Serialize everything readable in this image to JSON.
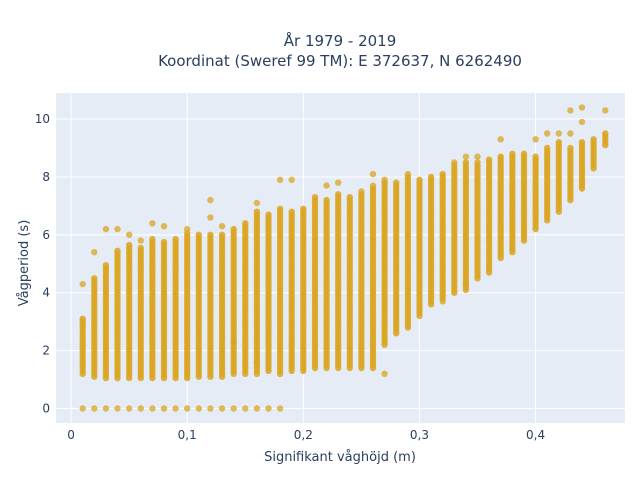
{
  "chart_data": {
    "type": "scatter",
    "title_line1": "År 1979 - 2019",
    "title_line2": "Koordinat (Sweref 99 TM): E 372637, N 6262490",
    "xlabel": "Signifikant våghöjd (m)",
    "ylabel": "Vågperiod (s)",
    "xlim": [
      -0.013,
      0.477
    ],
    "ylim": [
      -0.5,
      10.9
    ],
    "xticks": [
      0,
      0.1,
      0.2,
      0.3,
      0.4
    ],
    "xtick_labels": [
      "0",
      "0,1",
      "0,2",
      "0,3",
      "0,4"
    ],
    "yticks": [
      0,
      2,
      4,
      6,
      8,
      10
    ],
    "ytick_labels": [
      "0",
      "2",
      "4",
      "6",
      "8",
      "10"
    ],
    "grid": true,
    "marker_color": "#DAA520",
    "plot_bgcolor": "#E5ECF6",
    "columns": [
      {
        "x": 0.01,
        "y_min": 1.2,
        "y_max": 3.1,
        "extra": [
          0,
          4.3
        ]
      },
      {
        "x": 0.02,
        "y_min": 1.1,
        "y_max": 4.5,
        "extra": [
          0,
          5.4
        ]
      },
      {
        "x": 0.03,
        "y_min": 1.05,
        "y_max": 5.0,
        "extra": [
          0,
          6.2
        ]
      },
      {
        "x": 0.04,
        "y_min": 1.05,
        "y_max": 5.5,
        "extra": [
          0,
          6.2
        ]
      },
      {
        "x": 0.05,
        "y_min": 1.05,
        "y_max": 5.7,
        "extra": [
          0,
          6.0
        ]
      },
      {
        "x": 0.06,
        "y_min": 1.05,
        "y_max": 5.6,
        "extra": [
          0,
          5.8
        ]
      },
      {
        "x": 0.07,
        "y_min": 1.05,
        "y_max": 5.9,
        "extra": [
          0,
          6.4
        ]
      },
      {
        "x": 0.08,
        "y_min": 1.05,
        "y_max": 5.8,
        "extra": [
          0,
          6.3
        ]
      },
      {
        "x": 0.09,
        "y_min": 1.05,
        "y_max": 5.9,
        "extra": [
          0
        ]
      },
      {
        "x": 0.1,
        "y_min": 1.05,
        "y_max": 6.1,
        "extra": [
          0,
          6.2
        ]
      },
      {
        "x": 0.11,
        "y_min": 1.1,
        "y_max": 6.0,
        "extra": [
          0
        ]
      },
      {
        "x": 0.12,
        "y_min": 1.1,
        "y_max": 6.0,
        "extra": [
          0,
          7.2,
          6.6
        ]
      },
      {
        "x": 0.13,
        "y_min": 1.1,
        "y_max": 6.0,
        "extra": [
          0,
          6.3
        ]
      },
      {
        "x": 0.14,
        "y_min": 1.2,
        "y_max": 6.2,
        "extra": [
          0,
          2.3
        ]
      },
      {
        "x": 0.15,
        "y_min": 1.2,
        "y_max": 6.4,
        "extra": [
          0
        ]
      },
      {
        "x": 0.16,
        "y_min": 1.2,
        "y_max": 6.8,
        "extra": [
          0,
          7.1,
          1.6
        ]
      },
      {
        "x": 0.17,
        "y_min": 1.3,
        "y_max": 6.7,
        "extra": [
          0
        ]
      },
      {
        "x": 0.18,
        "y_min": 1.2,
        "y_max": 6.9,
        "extra": [
          0,
          7.9
        ]
      },
      {
        "x": 0.19,
        "y_min": 1.3,
        "y_max": 6.8,
        "extra": [
          7.9
        ]
      },
      {
        "x": 0.2,
        "y_min": 1.3,
        "y_max": 6.9,
        "extra": []
      },
      {
        "x": 0.21,
        "y_min": 1.4,
        "y_max": 7.3,
        "extra": []
      },
      {
        "x": 0.22,
        "y_min": 1.4,
        "y_max": 7.2,
        "extra": [
          7.7
        ]
      },
      {
        "x": 0.23,
        "y_min": 1.4,
        "y_max": 7.4,
        "extra": [
          7.8
        ]
      },
      {
        "x": 0.24,
        "y_min": 1.4,
        "y_max": 7.3,
        "extra": []
      },
      {
        "x": 0.25,
        "y_min": 1.4,
        "y_max": 7.4,
        "extra": [
          7.5
        ]
      },
      {
        "x": 0.26,
        "y_min": 1.4,
        "y_max": 7.6,
        "extra": [
          7.7,
          8.1
        ]
      },
      {
        "x": 0.27,
        "y_min": 2.2,
        "y_max": 7.8,
        "extra": [
          7.9,
          1.2
        ]
      },
      {
        "x": 0.28,
        "y_min": 2.6,
        "y_max": 7.8,
        "extra": []
      },
      {
        "x": 0.29,
        "y_min": 2.8,
        "y_max": 8.0,
        "extra": [
          8.1
        ]
      },
      {
        "x": 0.3,
        "y_min": 3.2,
        "y_max": 7.9,
        "extra": []
      },
      {
        "x": 0.31,
        "y_min": 3.6,
        "y_max": 8.0,
        "extra": []
      },
      {
        "x": 0.32,
        "y_min": 3.8,
        "y_max": 8.1,
        "extra": [
          3.7
        ]
      },
      {
        "x": 0.33,
        "y_min": 4.0,
        "y_max": 8.4,
        "extra": [
          8.5
        ]
      },
      {
        "x": 0.34,
        "y_min": 4.1,
        "y_max": 8.5,
        "extra": [
          4.3,
          8.7
        ]
      },
      {
        "x": 0.35,
        "y_min": 4.5,
        "y_max": 8.5,
        "extra": [
          8.7
        ]
      },
      {
        "x": 0.36,
        "y_min": 4.7,
        "y_max": 8.6,
        "extra": []
      },
      {
        "x": 0.37,
        "y_min": 5.2,
        "y_max": 8.7,
        "extra": [
          9.3
        ]
      },
      {
        "x": 0.38,
        "y_min": 5.4,
        "y_max": 8.8,
        "extra": []
      },
      {
        "x": 0.39,
        "y_min": 5.8,
        "y_max": 8.8,
        "extra": []
      },
      {
        "x": 0.4,
        "y_min": 6.2,
        "y_max": 8.7,
        "extra": [
          9.3
        ]
      },
      {
        "x": 0.41,
        "y_min": 6.5,
        "y_max": 9.0,
        "extra": [
          9.5
        ]
      },
      {
        "x": 0.42,
        "y_min": 6.8,
        "y_max": 9.2,
        "extra": [
          9.5
        ]
      },
      {
        "x": 0.43,
        "y_min": 7.2,
        "y_max": 9.0,
        "extra": [
          9.5,
          10.3
        ]
      },
      {
        "x": 0.44,
        "y_min": 7.6,
        "y_max": 9.2,
        "extra": [
          10.4,
          9.9
        ]
      },
      {
        "x": 0.45,
        "y_min": 8.3,
        "y_max": 9.3,
        "extra": []
      },
      {
        "x": 0.46,
        "y_min": 9.1,
        "y_max": 9.5,
        "extra": [
          10.3
        ]
      }
    ]
  }
}
